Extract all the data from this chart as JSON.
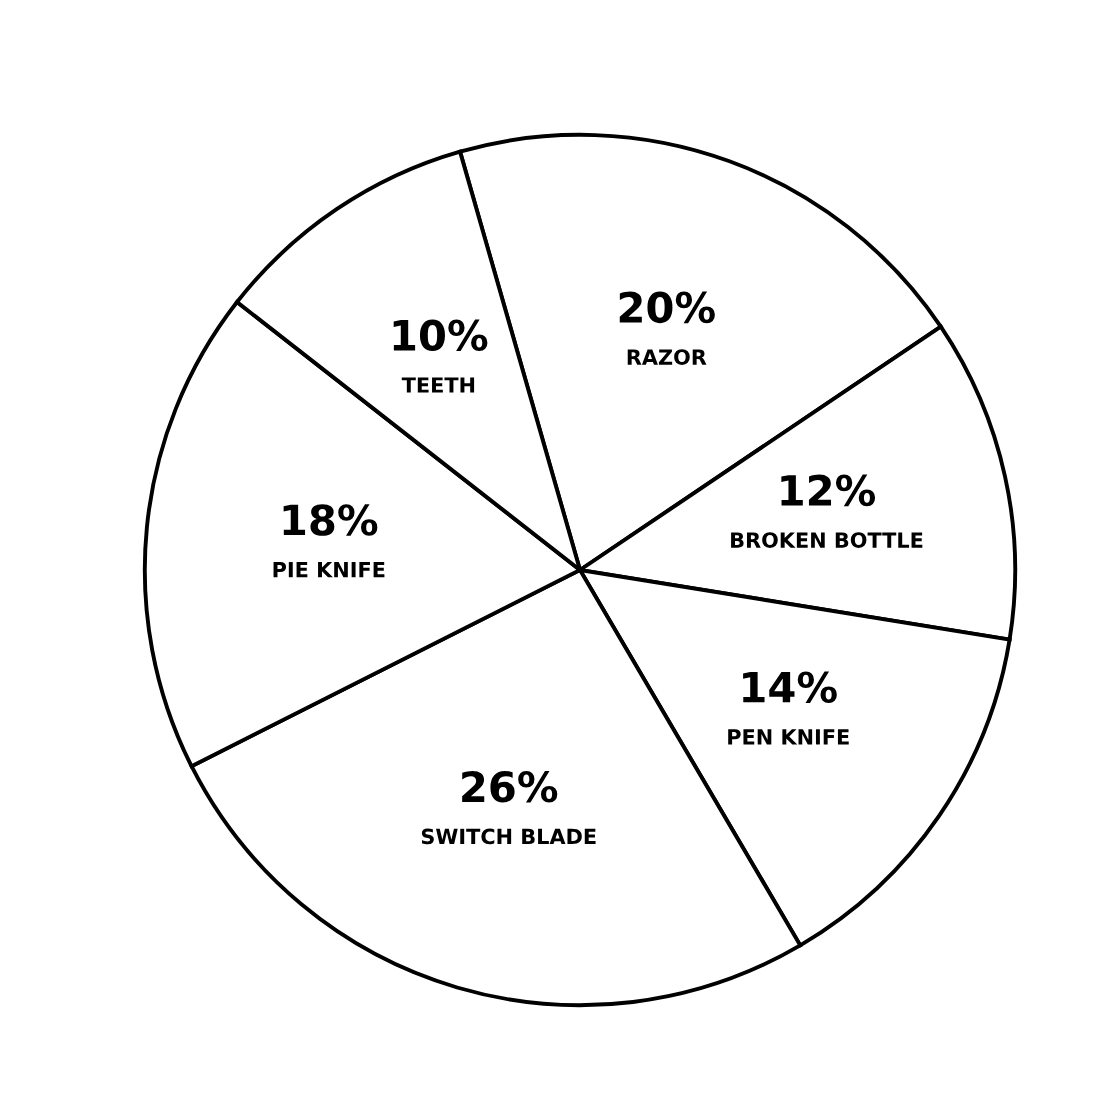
{
  "chart_data": {
    "type": "pie",
    "categories": [
      "RAZOR",
      "BROKEN BOTTLE",
      "PEN KNIFE",
      "SWITCH BLADE",
      "PIE KNIFE",
      "TEETH"
    ],
    "values": [
      20,
      12,
      14,
      26,
      18,
      10
    ],
    "value_labels": [
      "20%",
      "12%",
      "14%",
      "26%",
      "18%",
      "10%"
    ],
    "colors": [
      "#ffffff",
      "#ffffff",
      "#ffffff",
      "#ffffff",
      "#ffffff",
      "#ffffff"
    ]
  }
}
